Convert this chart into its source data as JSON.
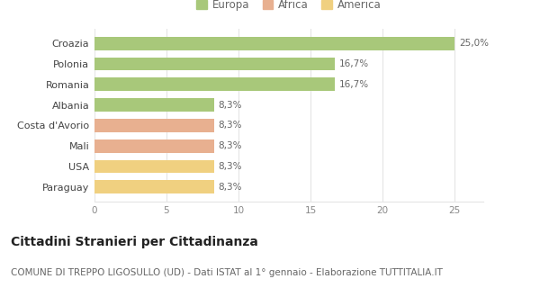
{
  "categories": [
    "Paraguay",
    "USA",
    "Mali",
    "Costa d'Avorio",
    "Albania",
    "Romania",
    "Polonia",
    "Croazia"
  ],
  "values": [
    8.3,
    8.3,
    8.3,
    8.3,
    8.3,
    16.7,
    16.7,
    25.0
  ],
  "colors": [
    "#f0d080",
    "#f0d080",
    "#e8b090",
    "#e8b090",
    "#a8c87a",
    "#a8c87a",
    "#a8c87a",
    "#a8c87a"
  ],
  "labels": [
    "8,3%",
    "8,3%",
    "8,3%",
    "8,3%",
    "8,3%",
    "16,7%",
    "16,7%",
    "25,0%"
  ],
  "legend": [
    {
      "label": "Europa",
      "color": "#a8c87a"
    },
    {
      "label": "Africa",
      "color": "#e8b090"
    },
    {
      "label": "America",
      "color": "#f0d080"
    }
  ],
  "xlim": [
    0,
    27
  ],
  "xticks": [
    0,
    5,
    10,
    15,
    20,
    25
  ],
  "title": "Cittadini Stranieri per Cittadinanza",
  "subtitle": "COMUNE DI TREPPO LIGOSULLO (UD) - Dati ISTAT al 1° gennaio - Elaborazione TUTTITALIA.IT",
  "background_color": "#ffffff",
  "grid_color": "#e5e5e5",
  "bar_label_fontsize": 7.5,
  "title_fontsize": 10,
  "subtitle_fontsize": 7.5
}
